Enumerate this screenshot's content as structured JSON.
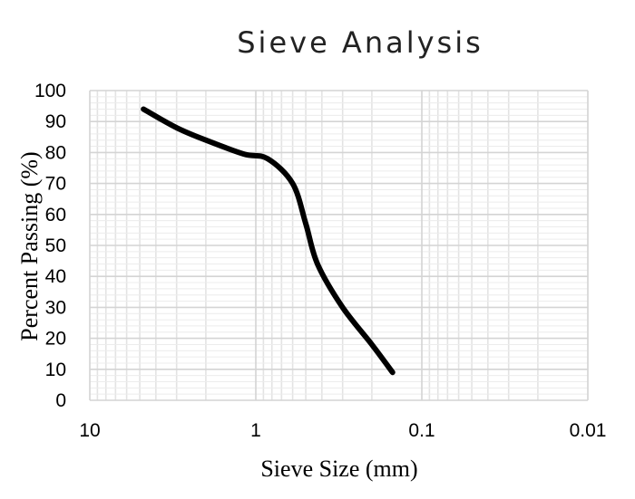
{
  "chart_data": {
    "type": "line",
    "title": "Sieve Analysis",
    "xlabel": "Sieve Size (mm)",
    "ylabel": "Percent Passing (%)",
    "x_scale": "log",
    "x_reversed": true,
    "xlim": [
      10,
      0.01
    ],
    "ylim": [
      0,
      100
    ],
    "x_ticks": [
      "10",
      "1",
      "0.1",
      "0.01"
    ],
    "y_ticks": [
      "0",
      "10",
      "20",
      "30",
      "40",
      "50",
      "60",
      "70",
      "80",
      "90",
      "100"
    ],
    "grid": true,
    "legend": "none",
    "series": [
      {
        "color": "#000000",
        "x": [
          4.75,
          3.0,
          2.0,
          1.18,
          0.85,
          0.6,
          0.5,
          0.425,
          0.3,
          0.2,
          0.15
        ],
        "y": [
          94,
          88,
          84,
          79.5,
          78,
          70,
          57,
          44,
          30,
          18,
          9
        ]
      }
    ]
  }
}
